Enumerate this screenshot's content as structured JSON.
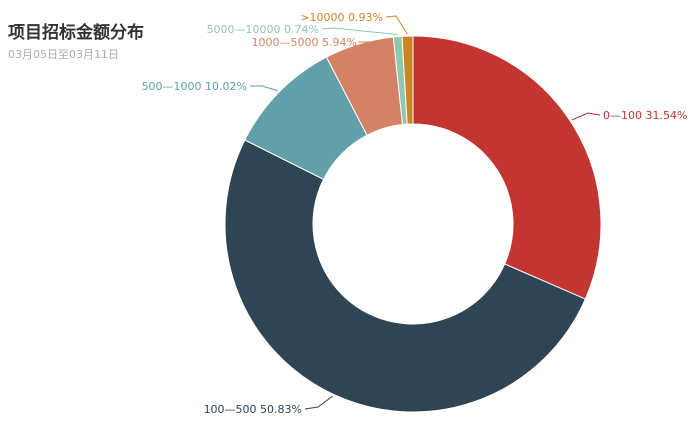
{
  "chart_data": {
    "type": "pie",
    "donut": true,
    "title": "项目招标金额分布",
    "subtitle": "03月05日至03月11日",
    "slices": [
      {
        "name": "0—100",
        "percent": 31.54,
        "label": "0—100 31.54%",
        "color": "#c23531"
      },
      {
        "name": "100—500",
        "percent": 50.83,
        "label": "100—500 50.83%",
        "color": "#2f4554"
      },
      {
        "name": "500—1000",
        "percent": 10.02,
        "label": "500—1000 10.02%",
        "color": "#61a0a8"
      },
      {
        "name": "1000—5000",
        "percent": 5.94,
        "label": "1000—5000 5.94%",
        "color": "#d48265"
      },
      {
        "name": "5000—10000",
        "percent": 0.74,
        "label": "5000—10000 0.74%",
        "color": "#91c7ae"
      },
      {
        "name": ">10000",
        "percent": 0.93,
        "label": ">10000 0.93%",
        "color": "#ca8622"
      }
    ]
  }
}
